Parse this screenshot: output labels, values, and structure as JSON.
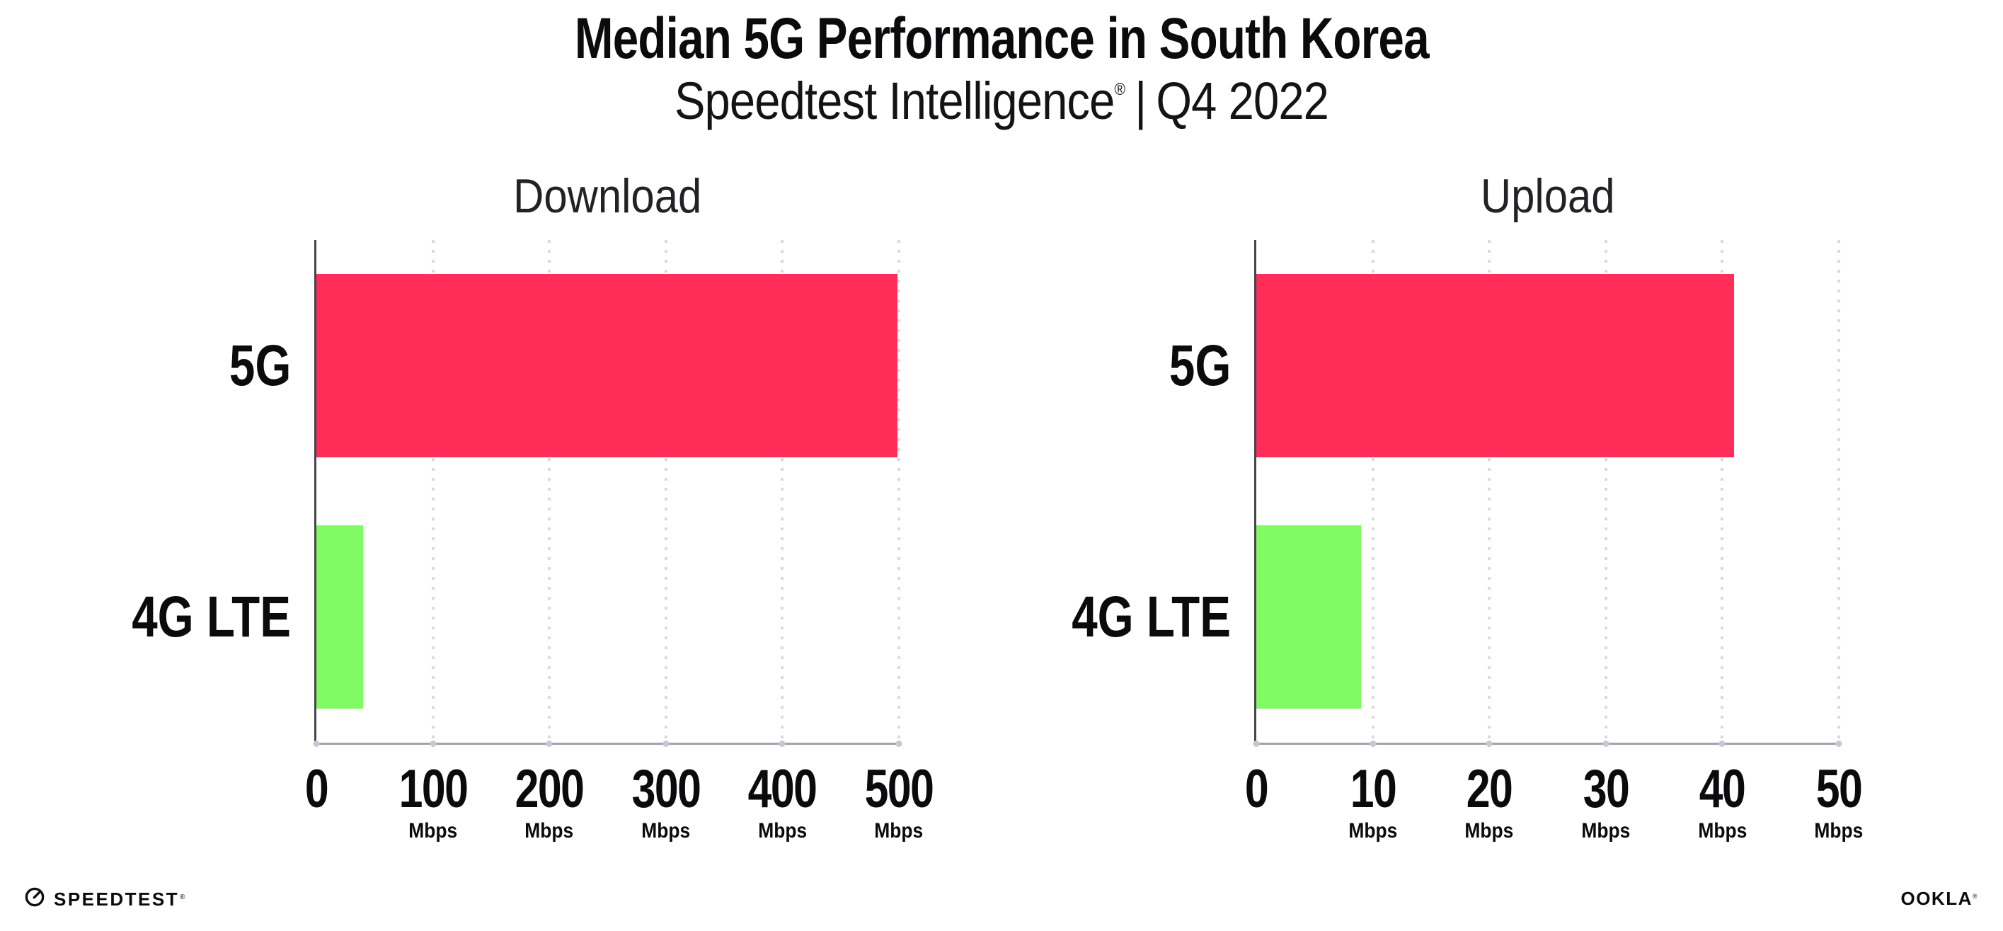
{
  "header": {
    "title": "Median 5G Performance in South Korea",
    "subtitle": {
      "brand": "Speedtest Intelligence",
      "registered": "®",
      "separator": "|",
      "period": "Q4 2022"
    }
  },
  "chart_data": [
    {
      "type": "bar",
      "orientation": "horizontal",
      "title": "Download",
      "categories": [
        "5G",
        "4G LTE"
      ],
      "values": [
        499,
        40
      ],
      "unit": "Mbps",
      "xlim": [
        0,
        500
      ],
      "xticks": [
        0,
        100,
        200,
        300,
        400,
        500
      ],
      "tick_unit": "Mbps",
      "unit_on_first_tick": false,
      "bar_colors": [
        "#FF2D58",
        "#81FA63"
      ],
      "gridlines": "vertical-dotted",
      "legend": "none"
    },
    {
      "type": "bar",
      "orientation": "horizontal",
      "title": "Upload",
      "categories": [
        "5G",
        "4G LTE"
      ],
      "values": [
        41,
        9
      ],
      "unit": "Mbps",
      "xlim": [
        0,
        50
      ],
      "xticks": [
        0,
        10,
        20,
        30,
        40,
        50
      ],
      "tick_unit": "Mbps",
      "unit_on_first_tick": false,
      "bar_colors": [
        "#FF2D58",
        "#81FA63"
      ],
      "gridlines": "vertical-dotted",
      "legend": "none"
    }
  ],
  "footer": {
    "speedtest": {
      "label": "SPEEDTEST",
      "trademark": "®"
    },
    "ookla": {
      "label": "OOKLA",
      "trademark": "®"
    }
  },
  "colors": {
    "bar_5g": "#FF2D58",
    "bar_4g_lte": "#81FA63",
    "gridline": "#d9dae2",
    "x_axis_line": "#a2a2ab",
    "y_axis_line": "#45454c",
    "text": "#0b0b0d"
  }
}
